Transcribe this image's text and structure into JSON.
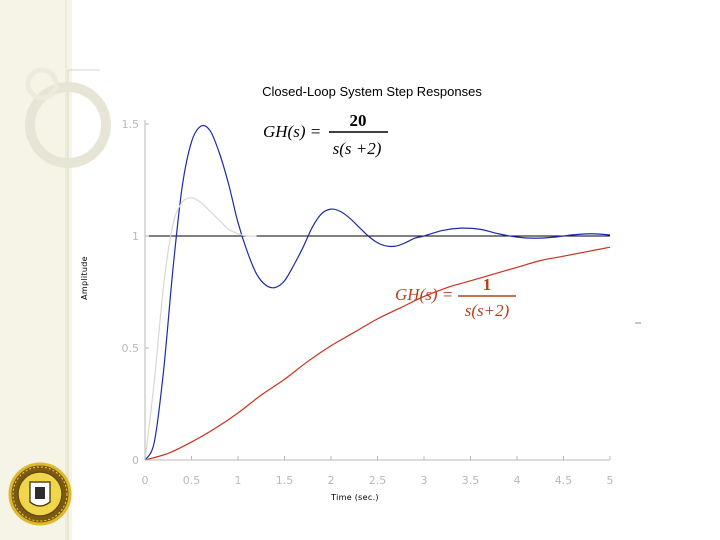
{
  "colors": {
    "background": "#ffffff",
    "deco_panel": "#f5f4e6",
    "deco_line": "#d9d8c4",
    "axis": "#b8b8b8",
    "reference_line": "#000000"
  },
  "icons": {
    "seal": "university-seal-icon"
  },
  "chart_data": {
    "type": "line",
    "title": "Closed-Loop System Step Responses",
    "xlabel": "Time (sec.)",
    "ylabel": "Amplitude",
    "xlim": [
      0,
      5
    ],
    "ylim": [
      0,
      1.5
    ],
    "xticks": [
      0,
      0.5,
      1,
      1.5,
      2,
      2.5,
      3,
      3.5,
      4,
      4.5,
      5
    ],
    "xtick_labels": [
      "0",
      "0.5",
      "1",
      "1.5",
      "2",
      "2.5",
      "3",
      "3.5",
      "4",
      "4.5",
      "5"
    ],
    "yticks": [
      0,
      0.5,
      1,
      1.5
    ],
    "ytick_labels": [
      "0",
      "0.5",
      "1",
      "1.5"
    ],
    "grid": false,
    "reference_line": {
      "y": 1,
      "color": "#000000"
    },
    "annotations": [
      {
        "lhs": "GH(s) =",
        "numerator": "20",
        "denominator": "s(s +2)",
        "color": "#000000"
      },
      {
        "lhs": "GH(s) =",
        "numerator": "1",
        "denominator": "s(s+2)",
        "color": "#b5401e"
      }
    ],
    "series": [
      {
        "color": "#1f2aa6",
        "x": [
          0,
          0.1,
          0.2,
          0.3,
          0.4,
          0.5,
          0.6,
          0.7,
          0.8,
          0.9,
          1.0,
          1.1,
          1.2,
          1.3,
          1.4,
          1.5,
          1.6,
          1.7,
          1.8,
          1.9,
          2.0,
          2.1,
          2.2,
          2.3,
          2.4,
          2.5,
          2.6,
          2.7,
          2.8,
          2.9,
          3.0,
          3.2,
          3.4,
          3.6,
          3.8,
          4.0,
          4.2,
          4.4,
          4.6,
          4.8,
          5.0
        ],
        "y": [
          0,
          0.08,
          0.4,
          0.85,
          1.22,
          1.42,
          1.49,
          1.47,
          1.37,
          1.23,
          1.06,
          0.93,
          0.83,
          0.78,
          0.77,
          0.8,
          0.87,
          0.95,
          1.04,
          1.1,
          1.12,
          1.11,
          1.08,
          1.04,
          1.0,
          0.97,
          0.955,
          0.955,
          0.97,
          0.99,
          1.0,
          1.025,
          1.035,
          1.03,
          1.01,
          0.995,
          0.99,
          0.995,
          1.005,
          1.01,
          1.005
        ]
      },
      {
        "color": "#d8d8d2",
        "x": [
          0,
          0.1,
          0.2,
          0.3,
          0.4,
          0.5,
          0.6,
          0.7,
          0.8,
          0.9,
          1.0,
          1.1,
          1.2
        ],
        "y": [
          0,
          0.35,
          0.78,
          1.05,
          1.15,
          1.17,
          1.15,
          1.11,
          1.07,
          1.03,
          1.01,
          1.0,
          1.0
        ]
      },
      {
        "color": "#c8321e",
        "x": [
          0,
          0.25,
          0.5,
          0.75,
          1.0,
          1.25,
          1.5,
          1.75,
          2.0,
          2.25,
          2.5,
          2.75,
          3.0,
          3.25,
          3.5,
          3.75,
          4.0,
          4.25,
          4.5,
          4.75,
          5.0
        ],
        "y": [
          0,
          0.03,
          0.08,
          0.14,
          0.21,
          0.29,
          0.36,
          0.44,
          0.51,
          0.57,
          0.63,
          0.68,
          0.73,
          0.77,
          0.8,
          0.83,
          0.86,
          0.89,
          0.91,
          0.93,
          0.95
        ]
      }
    ]
  }
}
